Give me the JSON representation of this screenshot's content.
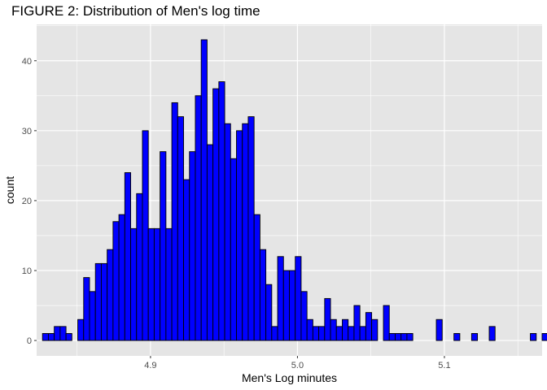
{
  "chart_data": {
    "type": "bar",
    "title": "FIGURE 2: Distribution of Men's log time",
    "xlabel": "Men's Log minutes",
    "ylabel": "count",
    "xlim": [
      4.8225,
      5.1665
    ],
    "ylim": [
      -2.2,
      45.2
    ],
    "x_ticks": [
      4.9,
      5.0,
      5.1
    ],
    "x_tick_labels": [
      "4.9",
      "5.0",
      "5.1"
    ],
    "y_ticks": [
      0,
      10,
      20,
      30,
      40
    ],
    "y_tick_labels": [
      "0",
      "10",
      "20",
      "30",
      "40"
    ],
    "bin_start": 4.8265,
    "bin_width": 0.004,
    "counts": [
      1,
      1,
      2,
      2,
      1,
      0,
      3,
      9,
      7,
      11,
      11,
      13,
      17,
      18,
      24,
      16,
      21,
      30,
      16,
      16,
      27,
      16,
      34,
      32,
      23,
      27,
      35,
      43,
      28,
      36,
      37,
      31,
      26,
      30,
      31,
      32,
      18,
      13,
      8,
      2,
      12,
      10,
      10,
      12,
      7,
      3,
      2,
      2,
      6,
      3,
      2,
      3,
      2,
      5,
      2,
      4,
      3,
      0,
      5,
      1,
      1,
      1,
      1,
      0,
      0,
      0,
      0,
      3,
      0,
      0,
      1,
      0,
      0,
      1,
      0,
      0,
      2,
      0,
      0,
      0,
      0,
      0,
      0,
      1,
      0,
      1
    ],
    "bar_fill": "#0000ff",
    "bar_outline": "#000000",
    "panel_background": "#e5e5e5",
    "grid_color": "#ffffff",
    "grid": true,
    "legend": "none"
  }
}
